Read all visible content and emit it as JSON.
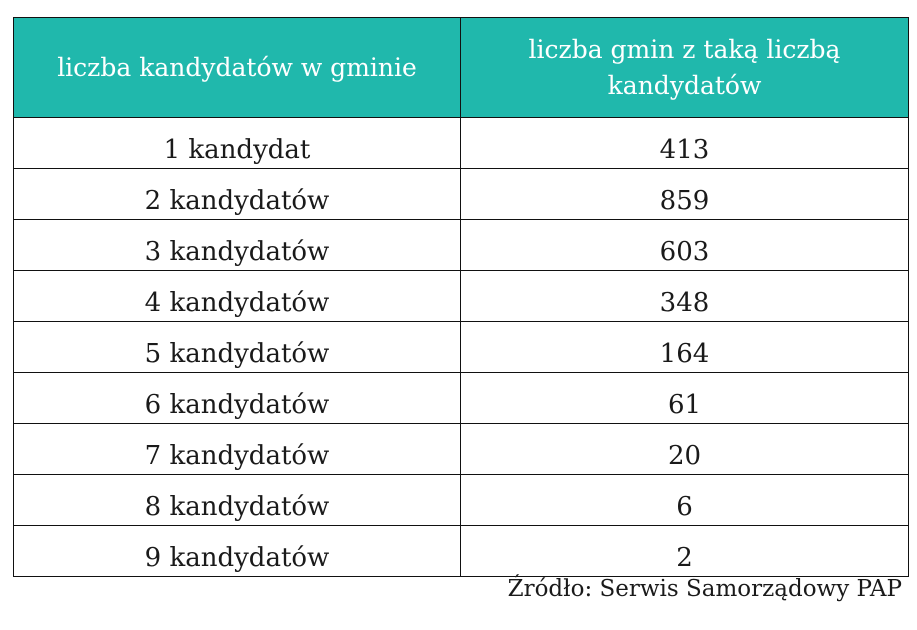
{
  "table": {
    "headers": [
      "liczba kandydatów w gminie",
      "liczba gmin z taką liczbą kandydatów"
    ],
    "header_color": "#20b8ac",
    "rows": [
      [
        "1 kandydat",
        "413"
      ],
      [
        "2 kandydatów",
        "859"
      ],
      [
        "3 kandydatów",
        "603"
      ],
      [
        "4 kandydatów",
        "348"
      ],
      [
        "5 kandydatów",
        "164"
      ],
      [
        "6 kandydatów",
        "61"
      ],
      [
        "7 kandydatów",
        "20"
      ],
      [
        "8 kandydatów",
        "6"
      ],
      [
        "9 kandydatów",
        "2"
      ]
    ]
  },
  "source": "Źródło: Serwis Samorządowy PAP"
}
